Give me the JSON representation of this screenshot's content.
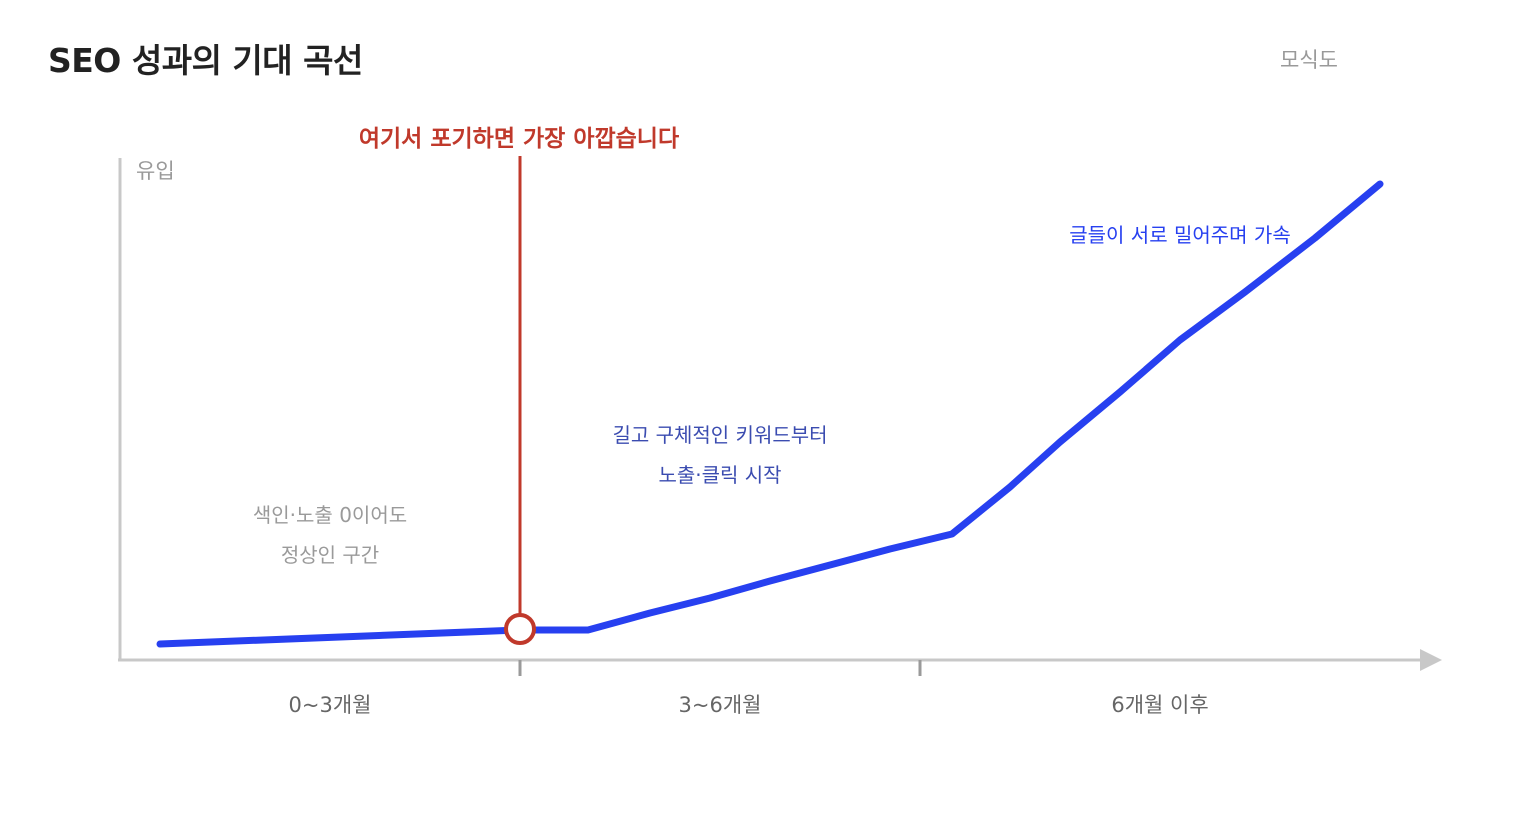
{
  "title": "SEO 성과의 기대 곡선",
  "badge": "모식도",
  "axis": {
    "y_label": "유입",
    "x_segments": [
      "0~3개월",
      "3~6개월",
      "6개월 이후"
    ]
  },
  "annotations": {
    "warning": "여기서 포기하면 가장 아깝습니다",
    "phase1": [
      "색인·노출 0이어도",
      "정상인 구간"
    ],
    "phase2": [
      "길고 구체적인 키워드부터",
      "노출·클릭 시작"
    ],
    "phase3": "글들이 서로 밀어주며 가속"
  },
  "colors": {
    "curve": "#2740f0",
    "warning": "#c0392b",
    "axis": "#c8c8c8",
    "muted_text": "#9a9a9a",
    "phase_text": "#3b4cb0"
  }
}
